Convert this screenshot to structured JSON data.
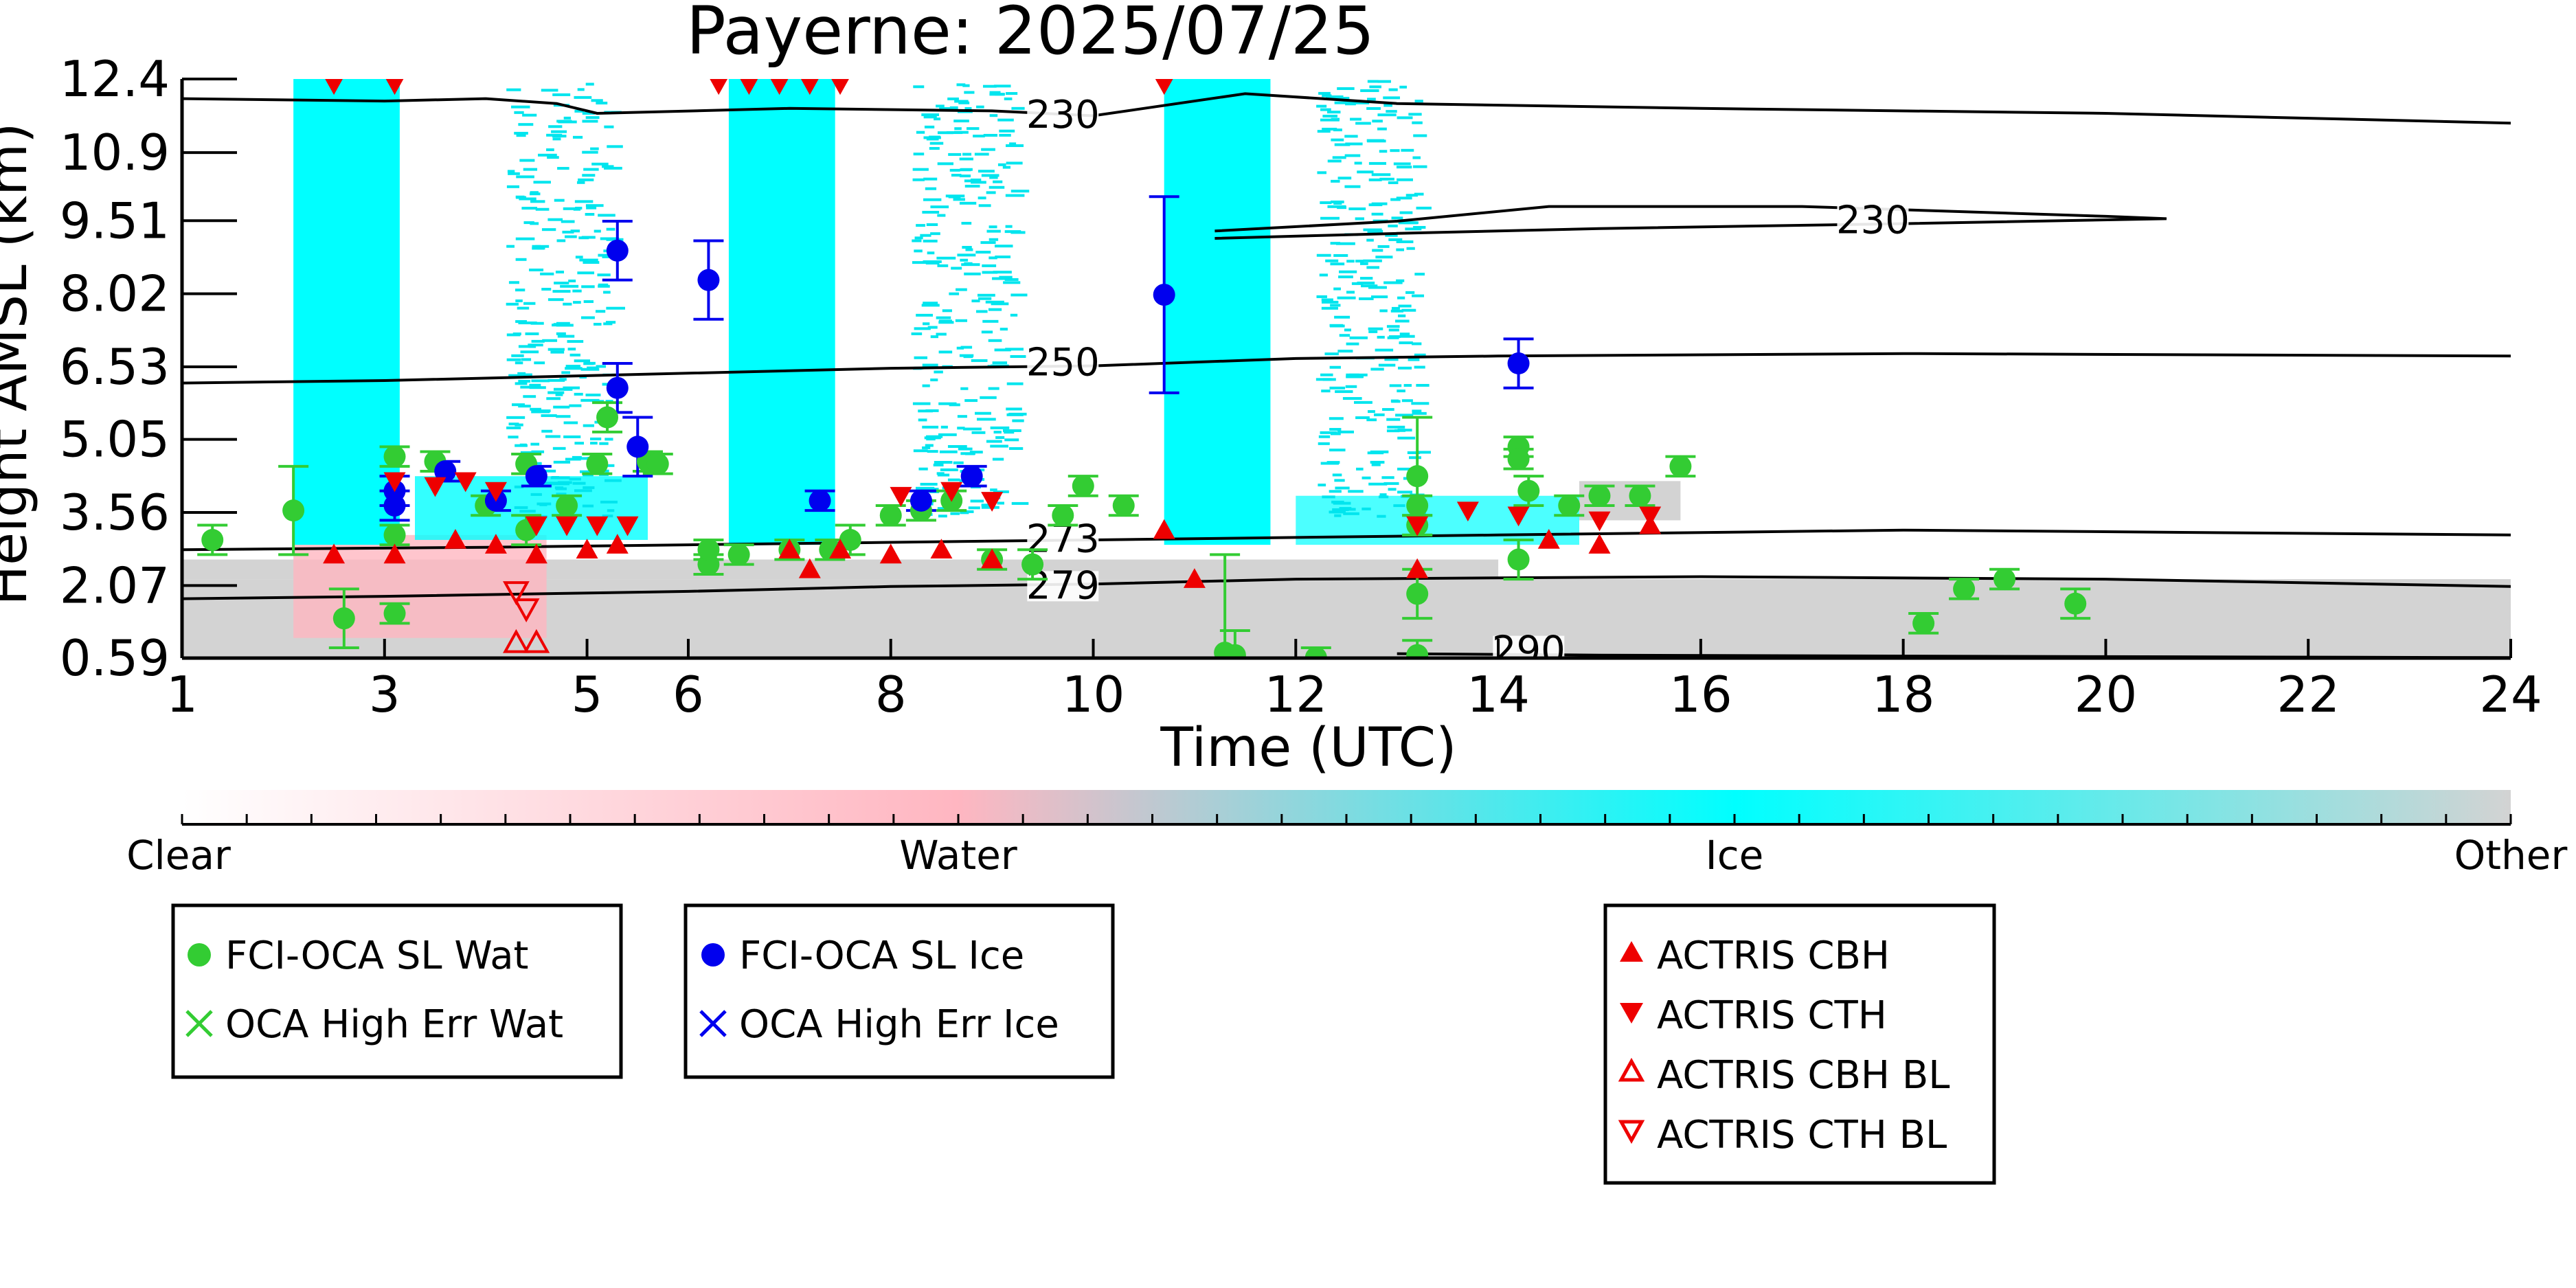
{
  "chart_data": {
    "type": "scatter",
    "title": "Payerne: 2025/07/25",
    "xlabel": "Time (UTC)",
    "ylabel": "Height AMSL (km)",
    "xlim": [
      1,
      24
    ],
    "ylim": [
      0.59,
      12.4
    ],
    "x_ticks": [
      "1",
      "3",
      "5",
      "6",
      "8",
      "10",
      "12",
      "14",
      "16",
      "18",
      "20",
      "22",
      "24"
    ],
    "y_ticks": [
      "0.59",
      "2.07",
      "3.56",
      "5.05",
      "6.53",
      "8.02",
      "9.51",
      "10.9",
      "12.4"
    ],
    "grid": false,
    "colorbar": {
      "labels": [
        "Clear",
        "Water",
        "Ice",
        "Other"
      ],
      "colors": {
        "clear": "#ffffff",
        "water": "#ffb6c1",
        "ice": "#00ffff",
        "other": "#d3d3d3"
      }
    },
    "legends": [
      {
        "entries": [
          {
            "label": "FCI-OCA SL Wat",
            "marker": "circle",
            "color": "#33cc33"
          },
          {
            "label": "OCA High Err Wat",
            "marker": "x",
            "color": "#33cc33"
          }
        ]
      },
      {
        "entries": [
          {
            "label": "FCI-OCA SL Ice",
            "marker": "circle",
            "color": "#0000ee"
          },
          {
            "label": "OCA High Err Ice",
            "marker": "x",
            "color": "#0000ee"
          }
        ]
      },
      {
        "entries": [
          {
            "label": "ACTRIS CBH",
            "marker": "triangle-up",
            "color": "#ee0000"
          },
          {
            "label": "ACTRIS CTH",
            "marker": "triangle-down",
            "color": "#ee0000"
          },
          {
            "label": "ACTRIS CBH BL",
            "marker": "triangle-up-open",
            "color": "#ee0000"
          },
          {
            "label": "ACTRIS CTH BL",
            "marker": "triangle-down-open",
            "color": "#ee0000"
          }
        ]
      }
    ],
    "ice_bands": [
      [
        2.1,
        3.15
      ],
      [
        6.4,
        7.45
      ],
      [
        10.7,
        11.75
      ]
    ],
    "sparse_ice_regions": [
      [
        4.2,
        5.2
      ],
      [
        8.2,
        9.2
      ],
      [
        12.2,
        13.2
      ]
    ],
    "contours": [
      {
        "label": "230",
        "points": [
          [
            1,
            12.0
          ],
          [
            3,
            11.95
          ],
          [
            4,
            12.0
          ],
          [
            4.7,
            11.9
          ],
          [
            5.1,
            11.7
          ],
          [
            7,
            11.8
          ],
          [
            9,
            11.75
          ],
          [
            10,
            11.65
          ],
          [
            11.5,
            12.1
          ],
          [
            13,
            11.9
          ],
          [
            16,
            11.8
          ],
          [
            20,
            11.7
          ],
          [
            24,
            11.5
          ]
        ],
        "label_at": [
          9.7,
          11.6
        ]
      },
      {
        "label": "230",
        "points": [
          [
            11.2,
            9.3
          ],
          [
            13,
            9.5
          ],
          [
            14.5,
            9.8
          ],
          [
            17,
            9.8
          ],
          [
            20,
            9.6
          ],
          [
            20.6,
            9.55
          ],
          [
            18,
            9.45
          ],
          [
            15,
            9.35
          ],
          [
            13,
            9.25
          ],
          [
            11.2,
            9.15
          ]
        ],
        "label_at": [
          17.7,
          9.45
        ]
      },
      {
        "label": "250",
        "points": [
          [
            1,
            6.2
          ],
          [
            3,
            6.25
          ],
          [
            5,
            6.35
          ],
          [
            8,
            6.5
          ],
          [
            10,
            6.55
          ],
          [
            12,
            6.7
          ],
          [
            14,
            6.75
          ],
          [
            18,
            6.8
          ],
          [
            24,
            6.75
          ]
        ],
        "label_at": [
          9.7,
          6.55
        ]
      },
      {
        "label": "273",
        "points": [
          [
            1,
            2.8
          ],
          [
            4,
            2.85
          ],
          [
            6,
            2.9
          ],
          [
            8,
            2.95
          ],
          [
            10,
            3.0
          ],
          [
            12,
            3.05
          ],
          [
            14,
            3.1
          ],
          [
            18,
            3.2
          ],
          [
            24,
            3.1
          ]
        ],
        "label_at": [
          9.7,
          2.95
        ]
      },
      {
        "label": "279",
        "points": [
          [
            1,
            1.8
          ],
          [
            3,
            1.85
          ],
          [
            6,
            1.95
          ],
          [
            8,
            2.05
          ],
          [
            10,
            2.1
          ],
          [
            12,
            2.2
          ],
          [
            16,
            2.25
          ],
          [
            20,
            2.2
          ],
          [
            24,
            2.05
          ]
        ],
        "label_at": [
          9.7,
          2.0
        ]
      },
      {
        "label": "290",
        "points": [
          [
            13,
            0.68
          ],
          [
            15,
            0.65
          ],
          [
            20,
            0.62
          ],
          [
            24,
            0.6
          ]
        ],
        "label_at": [
          14.3,
          0.68
        ]
      }
    ],
    "series": [
      {
        "name": "FCI-OCA SL Wat",
        "marker": "circle",
        "color": "#33cc33",
        "points": [
          [
            1.3,
            3.0,
            0.3
          ],
          [
            2.1,
            3.6,
            0.9
          ],
          [
            2.6,
            1.4,
            0.6
          ],
          [
            3.1,
            1.5,
            0.2
          ],
          [
            3.1,
            4.7,
            0.2
          ],
          [
            3.1,
            3.1,
            0.2
          ],
          [
            3.5,
            4.6,
            0.2
          ],
          [
            4.0,
            3.7,
            0.2
          ],
          [
            4.4,
            4.55,
            0.2
          ],
          [
            4.4,
            3.2,
            0.3
          ],
          [
            4.8,
            3.7,
            0.2
          ],
          [
            5.1,
            4.55,
            0.2
          ],
          [
            5.2,
            5.5,
            0.3
          ],
          [
            5.6,
            4.6,
            0.2
          ],
          [
            5.7,
            4.55,
            0.2
          ],
          [
            6.2,
            2.5,
            0.2
          ],
          [
            6.2,
            2.8,
            0.2
          ],
          [
            6.5,
            2.7,
            0.2
          ],
          [
            7.0,
            2.8,
            0.2
          ],
          [
            7.4,
            2.8,
            0.2
          ],
          [
            7.6,
            3.0,
            0.3
          ],
          [
            8.0,
            3.5,
            0.2
          ],
          [
            8.3,
            3.6,
            0.2
          ],
          [
            8.6,
            3.8,
            0.2
          ],
          [
            9.0,
            2.6,
            0.2
          ],
          [
            9.4,
            2.5,
            0.3
          ],
          [
            9.7,
            3.5,
            0.2
          ],
          [
            9.9,
            4.1,
            0.2
          ],
          [
            10.3,
            3.7,
            0.2
          ],
          [
            11.3,
            0.7,
            2.0
          ],
          [
            11.4,
            0.65,
            0.5
          ],
          [
            12.2,
            0.6,
            0.2
          ],
          [
            13.2,
            4.3,
            1.2
          ],
          [
            13.2,
            3.7,
            0.2
          ],
          [
            13.2,
            3.3,
            0.2
          ],
          [
            13.2,
            1.9,
            0.5
          ],
          [
            13.2,
            0.65,
            0.3
          ],
          [
            14.2,
            4.9,
            0.2
          ],
          [
            14.2,
            4.65,
            0.2
          ],
          [
            14.3,
            4.0,
            0.3
          ],
          [
            14.2,
            2.6,
            0.4
          ],
          [
            14.7,
            3.7,
            0.2
          ],
          [
            15.0,
            3.9,
            0.2
          ],
          [
            15.4,
            3.9,
            0.2
          ],
          [
            15.8,
            4.5,
            0.2
          ],
          [
            18.2,
            1.3,
            0.2
          ],
          [
            18.6,
            2.0,
            0.2
          ],
          [
            19.0,
            2.2,
            0.2
          ],
          [
            19.7,
            1.7,
            0.3
          ]
        ]
      },
      {
        "name": "FCI-OCA SL Ice",
        "marker": "circle",
        "color": "#0000ee",
        "points": [
          [
            3.1,
            4.0,
            0.3
          ],
          [
            3.1,
            3.7,
            0.3
          ],
          [
            3.6,
            4.4,
            0.2
          ],
          [
            4.1,
            3.8,
            0.2
          ],
          [
            4.5,
            4.3,
            0.2
          ],
          [
            5.3,
            8.9,
            0.6
          ],
          [
            5.3,
            6.1,
            0.5
          ],
          [
            5.5,
            4.9,
            0.6
          ],
          [
            6.2,
            8.3,
            0.8
          ],
          [
            7.3,
            3.8,
            0.2
          ],
          [
            8.3,
            3.8,
            0.2
          ],
          [
            8.8,
            4.3,
            0.2
          ],
          [
            10.7,
            8.0,
            2.0
          ],
          [
            14.2,
            6.6,
            0.5
          ]
        ]
      },
      {
        "name": "ACTRIS CBH",
        "marker": "triangle-up",
        "color": "#ee0000",
        "points": [
          [
            2.5,
            2.7
          ],
          [
            3.1,
            2.7
          ],
          [
            3.7,
            3.0
          ],
          [
            4.1,
            2.9
          ],
          [
            4.5,
            2.7
          ],
          [
            5.0,
            2.8
          ],
          [
            5.3,
            2.9
          ],
          [
            7.0,
            2.8
          ],
          [
            7.2,
            2.4
          ],
          [
            7.5,
            2.8
          ],
          [
            8.0,
            2.7
          ],
          [
            8.5,
            2.8
          ],
          [
            9.0,
            2.6
          ],
          [
            10.7,
            3.2
          ],
          [
            11.0,
            2.2
          ],
          [
            13.2,
            2.4
          ],
          [
            14.5,
            3.0
          ],
          [
            15.0,
            2.9
          ],
          [
            15.5,
            3.3
          ]
        ]
      },
      {
        "name": "ACTRIS CTH",
        "marker": "triangle-down",
        "color": "#ee0000",
        "points": [
          [
            2.5,
            12.3
          ],
          [
            3.1,
            12.3
          ],
          [
            6.3,
            12.3
          ],
          [
            6.6,
            12.3
          ],
          [
            6.9,
            12.3
          ],
          [
            7.2,
            12.3
          ],
          [
            7.5,
            12.3
          ],
          [
            10.7,
            12.3
          ],
          [
            3.1,
            4.2
          ],
          [
            3.5,
            4.1
          ],
          [
            3.8,
            4.2
          ],
          [
            4.1,
            4.0
          ],
          [
            4.5,
            3.3
          ],
          [
            4.8,
            3.3
          ],
          [
            5.1,
            3.3
          ],
          [
            5.4,
            3.3
          ],
          [
            8.1,
            3.9
          ],
          [
            8.6,
            4.0
          ],
          [
            9.0,
            3.8
          ],
          [
            13.2,
            3.3
          ],
          [
            13.7,
            3.6
          ],
          [
            14.2,
            3.5
          ],
          [
            15.0,
            3.4
          ],
          [
            15.5,
            3.5
          ]
        ]
      },
      {
        "name": "ACTRIS CBH BL",
        "marker": "triangle-up-open",
        "color": "#ee0000",
        "points": [
          [
            4.3,
            0.9
          ],
          [
            4.5,
            0.9
          ]
        ]
      },
      {
        "name": "ACTRIS CTH BL",
        "marker": "triangle-down-open",
        "color": "#ee0000",
        "points": [
          [
            4.3,
            1.95
          ],
          [
            4.4,
            1.6
          ]
        ]
      }
    ]
  }
}
